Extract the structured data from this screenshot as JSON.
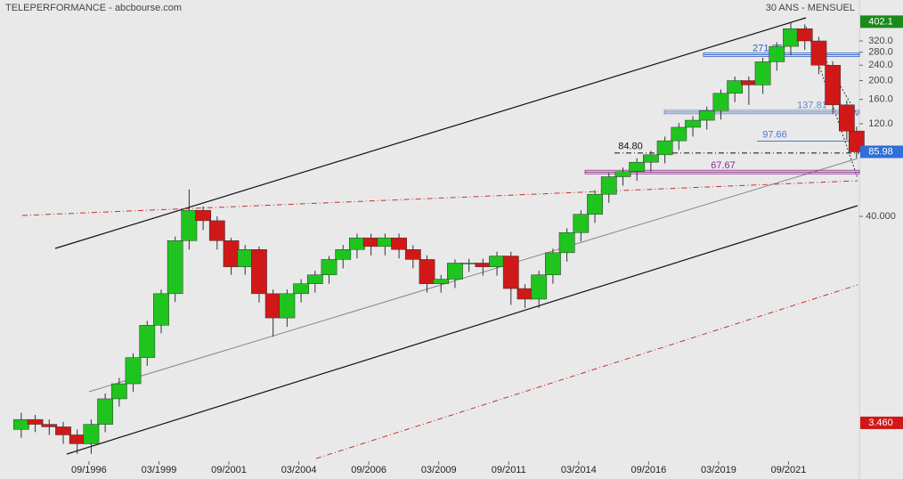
{
  "chart_data": {
    "type": "candlestick",
    "title": "TELEPERFORMANCE - abcbourse.com",
    "subtitle": "30 ANS - MENSUEL",
    "log_y": true,
    "grid": false,
    "up_color": "#1fc41f",
    "down_color": "#d01818",
    "x": [
      1994.25,
      1994.75,
      1995.25,
      1995.75,
      1996.25,
      1996.75,
      1997.25,
      1997.75,
      1998.25,
      1998.75,
      1999.25,
      1999.75,
      2000.25,
      2000.75,
      2001.25,
      2001.75,
      2002.25,
      2002.75,
      2003.25,
      2003.75,
      2004.25,
      2004.75,
      2005.25,
      2005.75,
      2006.25,
      2006.75,
      2007.25,
      2007.75,
      2008.25,
      2008.75,
      2009.25,
      2009.75,
      2010.25,
      2010.75,
      2011.25,
      2011.75,
      2012.25,
      2012.75,
      2013.25,
      2013.75,
      2014.25,
      2014.75,
      2015.25,
      2015.75,
      2016.25,
      2016.75,
      2017.25,
      2017.75,
      2018.25,
      2018.75,
      2019.25,
      2019.75,
      2020.25,
      2020.75,
      2021.25,
      2021.75,
      2022.25,
      2022.75,
      2023.25,
      2023.75,
      2024.1
    ],
    "open": [
      3.2,
      3.6,
      3.4,
      3.3,
      3.0,
      2.7,
      3.4,
      4.6,
      5.5,
      7.5,
      11.0,
      16,
      30,
      43,
      38,
      30,
      22,
      27,
      16,
      12,
      16,
      18,
      20,
      24,
      27,
      31,
      28,
      31,
      27,
      24,
      18,
      19,
      23,
      23,
      22,
      25,
      17,
      15,
      20,
      26,
      33,
      41,
      52,
      64,
      68,
      76,
      83,
      98,
      115,
      125,
      140,
      172,
      200,
      190,
      250,
      300,
      370,
      320,
      240,
      150,
      110
    ],
    "high": [
      3.9,
      3.8,
      3.6,
      3.5,
      3.2,
      3.6,
      4.9,
      5.9,
      7.9,
      11.6,
      16.8,
      31.5,
      55,
      45,
      40,
      31,
      28.5,
      28,
      16.8,
      16.8,
      19,
      21,
      25,
      28.5,
      32.6,
      32.6,
      32.6,
      32.6,
      28.4,
      25.2,
      20,
      24,
      24.2,
      24.2,
      26.3,
      26.3,
      17.9,
      21,
      27.3,
      34.7,
      43,
      54.6,
      67,
      71.4,
      79.8,
      87,
      103,
      121,
      131,
      147,
      180,
      210,
      210,
      262,
      315,
      402.1,
      390,
      336,
      252,
      158,
      116
    ],
    "low": [
      2.9,
      3.1,
      3.0,
      2.7,
      2.4,
      2.4,
      3.1,
      4.2,
      5.0,
      6.8,
      10.0,
      14.5,
      27,
      34,
      27,
      20,
      20,
      14.4,
      9.6,
      10.8,
      14.4,
      16.2,
      18,
      21.6,
      24.3,
      25.2,
      25.2,
      24.3,
      21.6,
      16.2,
      16.2,
      17.1,
      20.7,
      19.8,
      19.8,
      14.0,
      13.5,
      13.5,
      18,
      23.4,
      29.7,
      37,
      47,
      57.6,
      61,
      68,
      75,
      88,
      103,
      112,
      126,
      155,
      150,
      171,
      225,
      270,
      288,
      216,
      135,
      99,
      80
    ],
    "close": [
      3.6,
      3.4,
      3.3,
      3.0,
      2.7,
      3.4,
      4.6,
      5.5,
      7.5,
      11.0,
      16,
      30,
      43,
      38,
      30,
      22,
      27,
      16,
      12,
      16,
      18,
      20,
      24,
      27,
      31,
      28,
      31,
      27,
      24,
      18,
      19,
      23,
      23,
      22,
      25,
      17,
      15,
      20,
      26,
      33,
      41,
      52,
      64,
      68,
      76,
      83,
      98,
      115,
      125,
      140,
      172,
      200,
      190,
      250,
      300,
      370,
      320,
      240,
      150,
      110,
      85.98
    ],
    "xlim": [
      1994.0,
      2024.2
    ],
    "xticks": [
      {
        "value": 1996.67,
        "label": "09/1996"
      },
      {
        "value": 1999.17,
        "label": "03/1999"
      },
      {
        "value": 2001.67,
        "label": "09/2001"
      },
      {
        "value": 2004.17,
        "label": "03/2004"
      },
      {
        "value": 2006.67,
        "label": "09/2006"
      },
      {
        "value": 2009.17,
        "label": "03/2009"
      },
      {
        "value": 2011.67,
        "label": "09/2011"
      },
      {
        "value": 2014.17,
        "label": "03/2014"
      },
      {
        "value": 2016.67,
        "label": "09/2016"
      },
      {
        "value": 2019.17,
        "label": "03/2019"
      },
      {
        "value": 2021.67,
        "label": "09/2021"
      }
    ],
    "ylim": [
      2.34,
      430
    ],
    "yticks": [
      {
        "value": 320,
        "label": "320.0"
      },
      {
        "value": 280,
        "label": "280.0"
      },
      {
        "value": 240,
        "label": "240.0"
      },
      {
        "value": 200,
        "label": "200.0"
      },
      {
        "value": 160,
        "label": "160.0"
      },
      {
        "value": 120,
        "label": "120.0"
      },
      {
        "value": 40,
        "label": "40.000"
      }
    ],
    "price_tags": [
      {
        "value": 402.1,
        "color": "#1a8a1a"
      },
      {
        "value": 85.98,
        "color": "#2f6fd6"
      },
      {
        "value": {
          "value": 3.46,
          "label": "3.460"
        },
        "color": "#d01818"
      }
    ],
    "levels": [
      {
        "value": 271.85,
        "color": "#2a62c9"
      },
      {
        "value": 137.81,
        "color": "#6a86c8"
      },
      {
        "value": 97.66,
        "color": "#4a78d0"
      },
      {
        "value": {
          "value": 84.8,
          "label": "84.80"
        },
        "color": "#111111"
      },
      {
        "value": 67.67,
        "color": "#8a2a8a"
      }
    ]
  }
}
